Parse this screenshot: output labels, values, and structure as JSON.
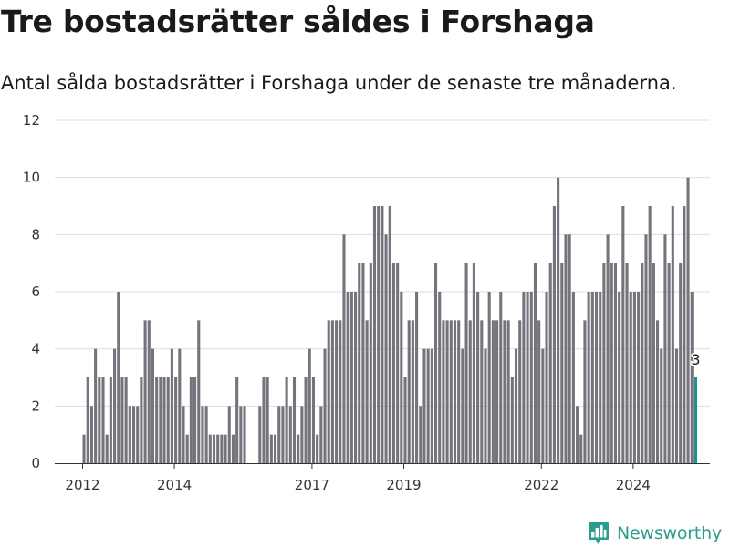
{
  "title": "Tre bostadsrätter såldes i Forshaga",
  "subtitle": "Antal sålda bostadsrätter i Forshaga under de senaste tre månaderna.",
  "brand": {
    "name": "Newsworthy",
    "icon": "bar-chart-pin-icon"
  },
  "colors": {
    "bar": "#75747c",
    "highlight": "#18958e",
    "grid": "#dddddd",
    "axis": "#333333",
    "brand": "#2a9d8f"
  },
  "chart_data": {
    "type": "bar",
    "title": "",
    "xlabel": "",
    "ylabel": "",
    "ylim": [
      0,
      12
    ],
    "yticks": [
      0,
      2,
      4,
      6,
      8,
      10,
      12
    ],
    "xticks": [
      "2012",
      "2014",
      "2017",
      "2019",
      "2022",
      "2024"
    ],
    "grid": true,
    "legend": "none",
    "first_month": "2012-01",
    "values": [
      1,
      3,
      2,
      4,
      3,
      3,
      1,
      3,
      4,
      6,
      3,
      3,
      2,
      2,
      2,
      3,
      5,
      5,
      4,
      3,
      3,
      3,
      3,
      4,
      3,
      4,
      2,
      1,
      3,
      3,
      5,
      2,
      2,
      1,
      1,
      1,
      1,
      1,
      2,
      1,
      3,
      2,
      2,
      0,
      0,
      0,
      2,
      3,
      3,
      1,
      1,
      2,
      2,
      3,
      2,
      3,
      1,
      2,
      3,
      4,
      3,
      1,
      2,
      4,
      5,
      5,
      5,
      5,
      8,
      6,
      6,
      6,
      7,
      7,
      5,
      7,
      9,
      9,
      9,
      8,
      9,
      7,
      7,
      6,
      3,
      5,
      5,
      6,
      2,
      4,
      4,
      4,
      7,
      6,
      5,
      5,
      5,
      5,
      5,
      4,
      7,
      5,
      7,
      6,
      5,
      4,
      6,
      5,
      5,
      6,
      5,
      5,
      3,
      4,
      5,
      6,
      6,
      6,
      7,
      5,
      4,
      6,
      7,
      9,
      10,
      7,
      8,
      8,
      6,
      2,
      1,
      5,
      6,
      6,
      6,
      6,
      7,
      8,
      7,
      7,
      6,
      9,
      7,
      6,
      6,
      6,
      7,
      8,
      9,
      7,
      5,
      4,
      8,
      7,
      9,
      4,
      7,
      9,
      10,
      6,
      3
    ],
    "highlight_last": true,
    "annotations": [
      {
        "text": "3",
        "target": "last"
      }
    ]
  }
}
